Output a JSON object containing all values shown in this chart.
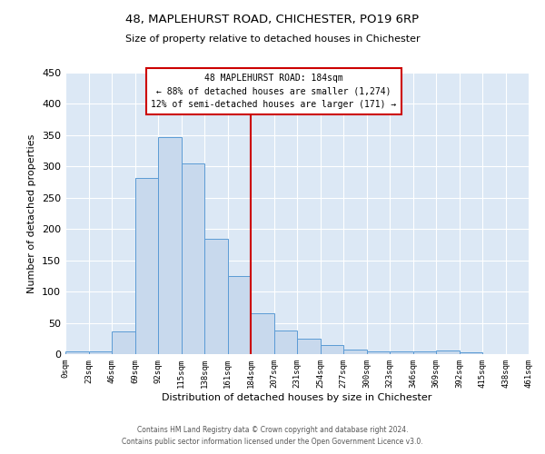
{
  "title": "48, MAPLEHURST ROAD, CHICHESTER, PO19 6RP",
  "subtitle": "Size of property relative to detached houses in Chichester",
  "xlabel": "Distribution of detached houses by size in Chichester",
  "ylabel": "Number of detached properties",
  "bar_values": [
    5,
    5,
    37,
    281,
    347,
    305,
    184,
    125,
    66,
    38,
    24,
    14,
    7,
    5,
    5,
    5,
    6,
    3,
    0
  ],
  "bin_labels": [
    "0sqm",
    "23sqm",
    "46sqm",
    "69sqm",
    "92sqm",
    "115sqm",
    "138sqm",
    "161sqm",
    "184sqm",
    "207sqm",
    "231sqm",
    "254sqm",
    "277sqm",
    "300sqm",
    "323sqm",
    "346sqm",
    "369sqm",
    "392sqm",
    "415sqm",
    "438sqm",
    "461sqm"
  ],
  "bar_color": "#c8d9ed",
  "bar_edge_color": "#5b9bd5",
  "vline_color": "#cc0000",
  "annotation_line1": "48 MAPLEHURST ROAD: 184sqm",
  "annotation_line2": "← 88% of detached houses are smaller (1,274)",
  "annotation_line3": "12% of semi-detached houses are larger (171) →",
  "annotation_box_color": "#cc0000",
  "ylim": [
    0,
    450
  ],
  "yticks": [
    0,
    50,
    100,
    150,
    200,
    250,
    300,
    350,
    400,
    450
  ],
  "bg_color": "#dce8f5",
  "footer_line1": "Contains HM Land Registry data © Crown copyright and database right 2024.",
  "footer_line2": "Contains public sector information licensed under the Open Government Licence v3.0."
}
